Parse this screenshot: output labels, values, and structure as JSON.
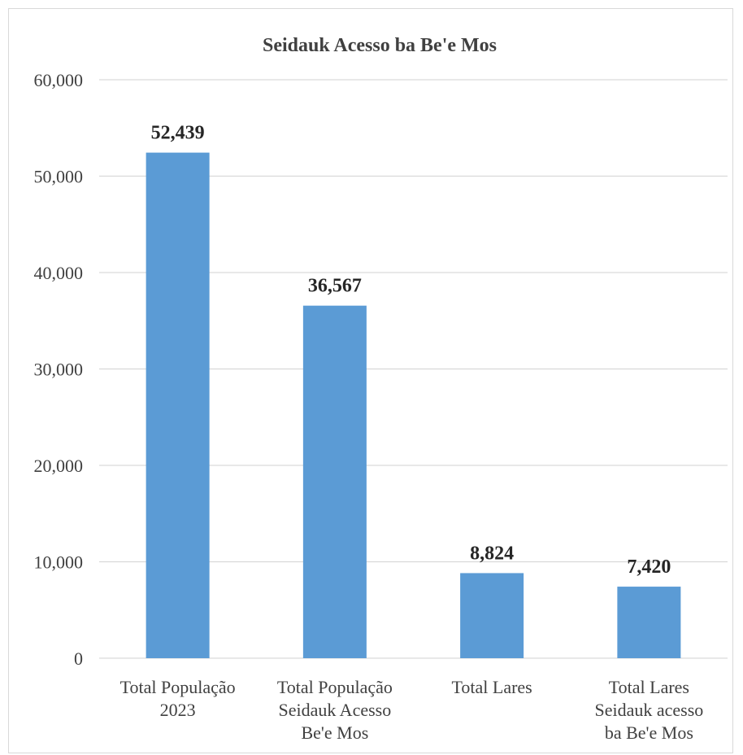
{
  "chart_data": {
    "type": "bar",
    "title": "Seidauk Acesso ba Be'e Mos",
    "categories": [
      [
        "Total População",
        "2023"
      ],
      [
        "Total População",
        "Seidauk Acesso",
        "Be'e Mos"
      ],
      [
        "Total Lares"
      ],
      [
        "Total Lares",
        "Seidauk acesso",
        "ba Be'e Mos"
      ]
    ],
    "values": [
      52439,
      36567,
      8824,
      7420
    ],
    "value_labels": [
      "52,439",
      "36,567",
      "8,824",
      "7,420"
    ],
    "ylim": [
      0,
      60000
    ],
    "yticks": [
      0,
      10000,
      20000,
      30000,
      40000,
      50000,
      60000
    ],
    "ytick_labels": [
      "0",
      "10,000",
      "20,000",
      "30,000",
      "40,000",
      "50,000",
      "60,000"
    ],
    "bar_color": "#5b9bd5",
    "grid": true,
    "xlabel": "",
    "ylabel": ""
  }
}
